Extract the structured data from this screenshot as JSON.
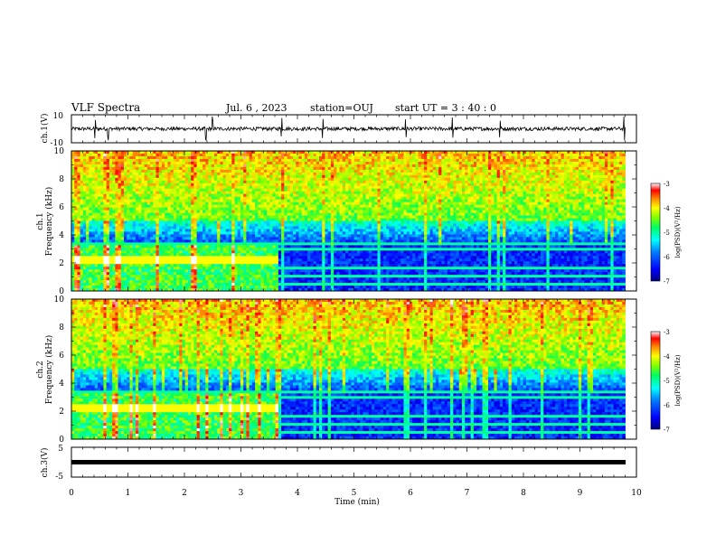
{
  "header": {
    "title": "VLF Spectra",
    "date": "Jul. 6 , 2023",
    "station": "station=OUJ",
    "start_ut": "start UT = 3 : 40 : 0"
  },
  "colorbar_label": "log(PSD)(V²/Hz)",
  "colors": {
    "spectrogram_scale": [
      "#000080",
      "#0000ff",
      "#0080ff",
      "#00ffff",
      "#00ff80",
      "#80ff00",
      "#ffff00",
      "#ff8000",
      "#ff0000",
      "#ffffff"
    ]
  },
  "chart_data": [
    {
      "type": "line",
      "panel": "ch.1 waveform",
      "ylabel": "ch.1(V)",
      "ylim": [
        -10,
        10
      ],
      "yticks": [
        "10",
        "-10"
      ],
      "xlim": [
        0,
        10
      ],
      "baseline": 0,
      "spikes_minutes": [
        0.42,
        0.65,
        2.38,
        2.5,
        3.72,
        4.45,
        5.92,
        6.75,
        7.58,
        9.78
      ]
    },
    {
      "type": "heatmap",
      "panel": "ch.1 spectrogram",
      "ylabel_line1": "ch.1",
      "ylabel_line2": "Frequency (kHz)",
      "ylim": [
        0,
        10
      ],
      "yticks": [
        "0",
        "2",
        "4",
        "6",
        "8",
        "10"
      ],
      "xlim": [
        0,
        10
      ],
      "data_end_minute": 9.8,
      "regime_change_minute": 3.65,
      "colorbar": {
        "min": -7,
        "max": -3,
        "ticks": [
          "-3",
          "-4",
          "-5",
          "-6",
          "-7"
        ]
      }
    },
    {
      "type": "heatmap",
      "panel": "ch.2 spectrogram",
      "ylabel_line1": "ch.2",
      "ylabel_line2": "Frequency (kHz)",
      "ylim": [
        0,
        10
      ],
      "yticks": [
        "0",
        "2",
        "4",
        "6",
        "8",
        "10"
      ],
      "xlim": [
        0,
        10
      ],
      "data_end_minute": 9.8,
      "regime_change_minute": 3.65,
      "colorbar": {
        "min": -7,
        "max": -3,
        "ticks": [
          "-3",
          "-4",
          "-5",
          "-6",
          "-7"
        ]
      }
    },
    {
      "type": "line",
      "panel": "ch.3 waveform",
      "ylabel": "ch.3(V)",
      "ylim": [
        -5,
        5
      ],
      "yticks": [
        "5",
        "-5"
      ],
      "xlim": [
        0,
        10
      ],
      "baseline": 0
    }
  ],
  "xaxis": {
    "label": "Time (min)",
    "ticks": [
      "0",
      "1",
      "2",
      "3",
      "4",
      "5",
      "6",
      "7",
      "8",
      "9",
      "10"
    ]
  }
}
